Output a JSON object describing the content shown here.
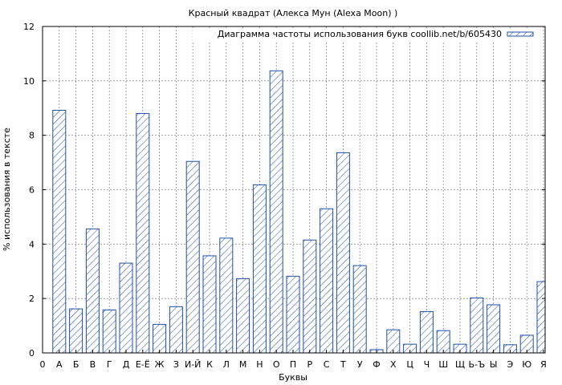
{
  "chart_data": {
    "type": "bar",
    "title": "Красный квадрат (Алекса Мун (Alexa Moon) )",
    "xlabel": "Буквы",
    "ylabel": "% использования в тексте",
    "legend": {
      "label": "Диаграмма частоты использования букв coollib.net/b/605430",
      "position": "top-right"
    },
    "ylim": [
      0,
      12
    ],
    "yticks": [
      0,
      2,
      4,
      6,
      8,
      10,
      12
    ],
    "x_origin_label": "0",
    "grid": true,
    "bar_color": "#1f4fa8",
    "categories": [
      "А",
      "Б",
      "В",
      "Г",
      "Д",
      "Е-Ё",
      "Ж",
      "З",
      "И-Й",
      "К",
      "Л",
      "М",
      "Н",
      "О",
      "П",
      "Р",
      "С",
      "Т",
      "У",
      "Ф",
      "Х",
      "Ц",
      "Ч",
      "Ш",
      "Щ",
      "Ь-Ъ",
      "Ы",
      "Э",
      "Ю",
      "Я"
    ],
    "values": [
      8.92,
      1.62,
      4.56,
      1.58,
      3.3,
      8.8,
      1.05,
      1.7,
      7.04,
      3.57,
      4.22,
      2.73,
      6.18,
      10.37,
      2.82,
      4.15,
      5.3,
      7.36,
      3.21,
      0.12,
      0.85,
      0.32,
      1.52,
      0.82,
      0.32,
      2.02,
      1.77,
      0.3,
      0.65,
      2.62
    ]
  }
}
